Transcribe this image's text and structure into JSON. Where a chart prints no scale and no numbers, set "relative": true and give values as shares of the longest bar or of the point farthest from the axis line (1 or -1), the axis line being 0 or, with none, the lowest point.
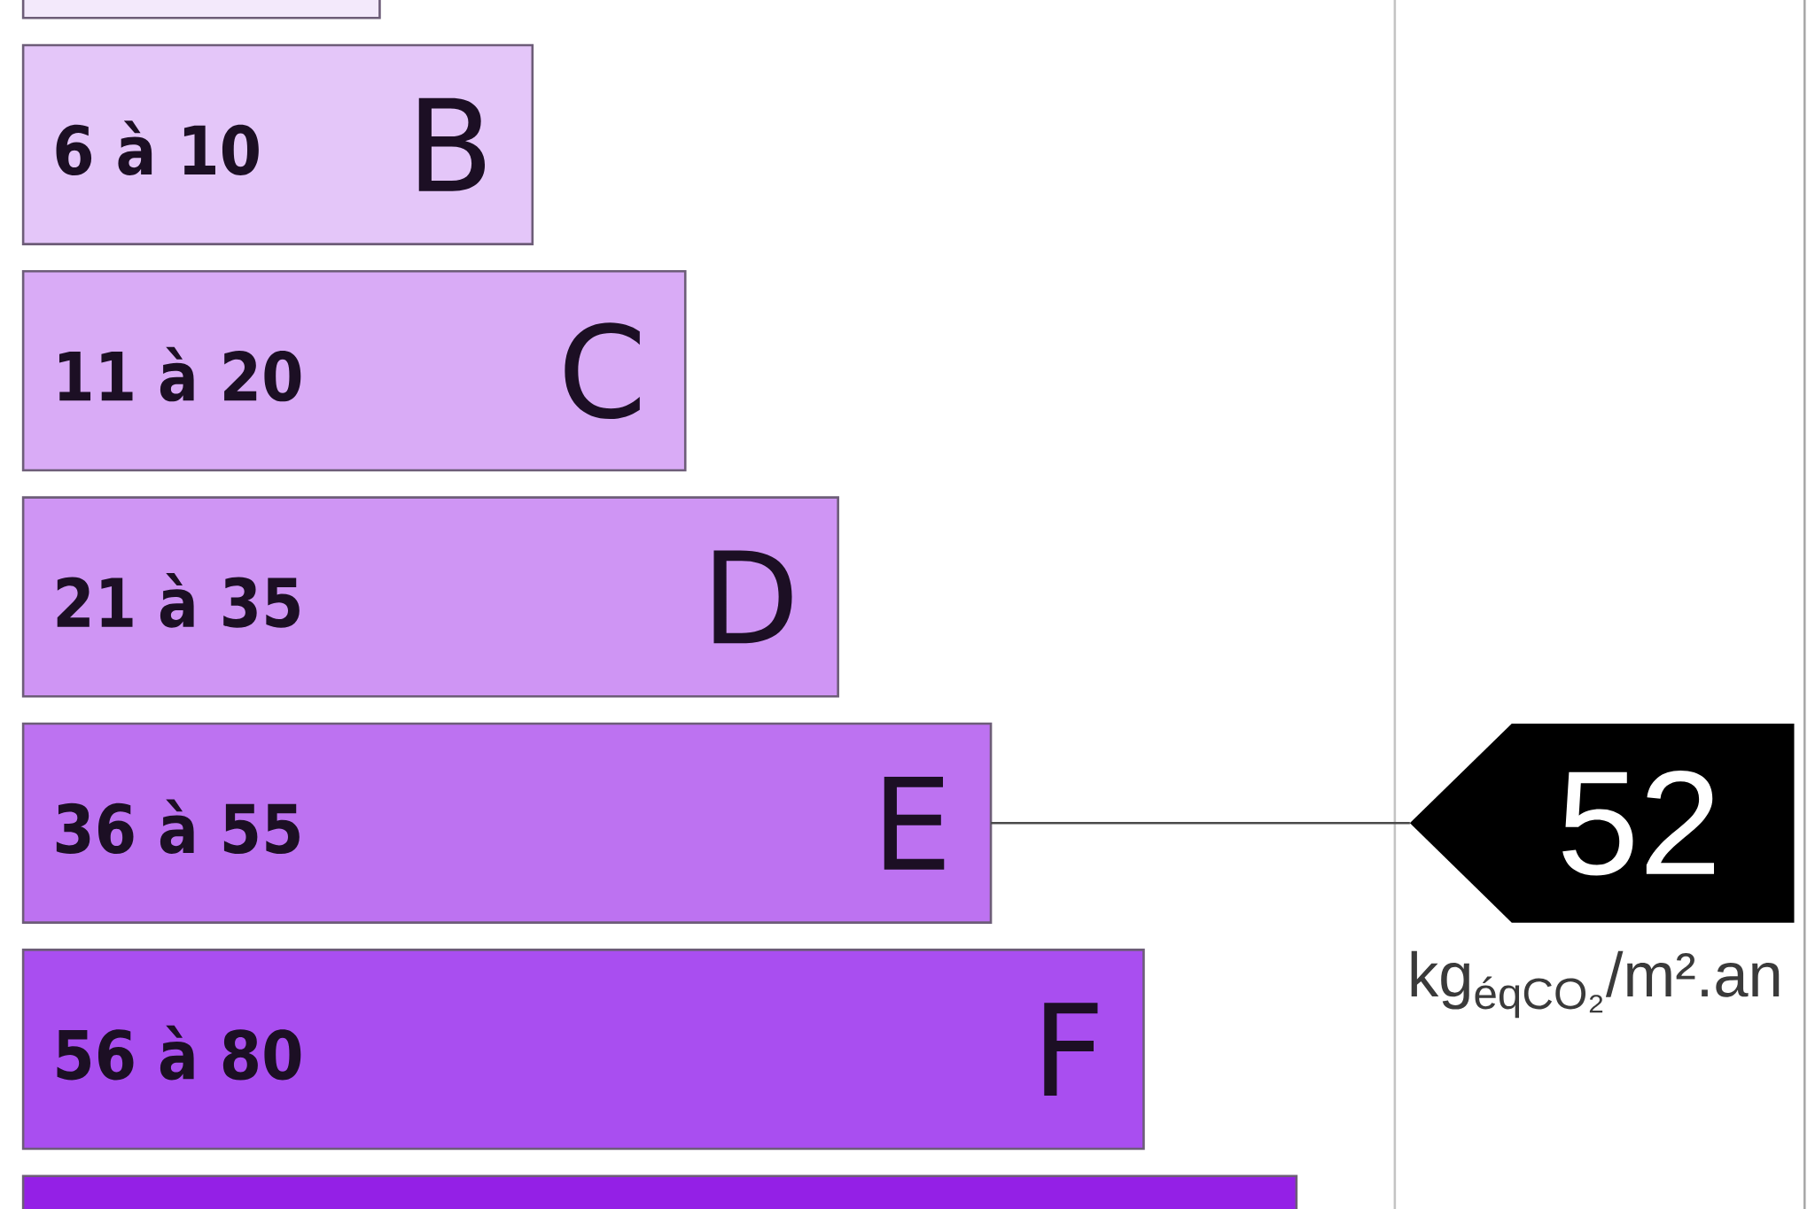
{
  "chart_data": {
    "type": "bar",
    "orientation": "horizontal",
    "relative": true,
    "categories": [
      null,
      "B",
      "C",
      "D",
      "E",
      "F",
      null
    ],
    "values": [
      0.28,
      0.4,
      0.52,
      0.64,
      0.76,
      0.88,
      1
    ],
    "colors": [
      "#f3e9fb",
      "#e4c6f9",
      "#d9abf6",
      "#cf95f4",
      "#bd72f1",
      "#a94ef0",
      "#9420e6"
    ],
    "annotations": [
      "6 à 10",
      "11 à 20",
      "21 à 35",
      "36 à 55",
      "56 à 80",
      {
        "text": "52",
        "x": 0.76,
        "y": "E"
      },
      "kg$_{éqCO₂}$/m².an"
    ]
  }
}
